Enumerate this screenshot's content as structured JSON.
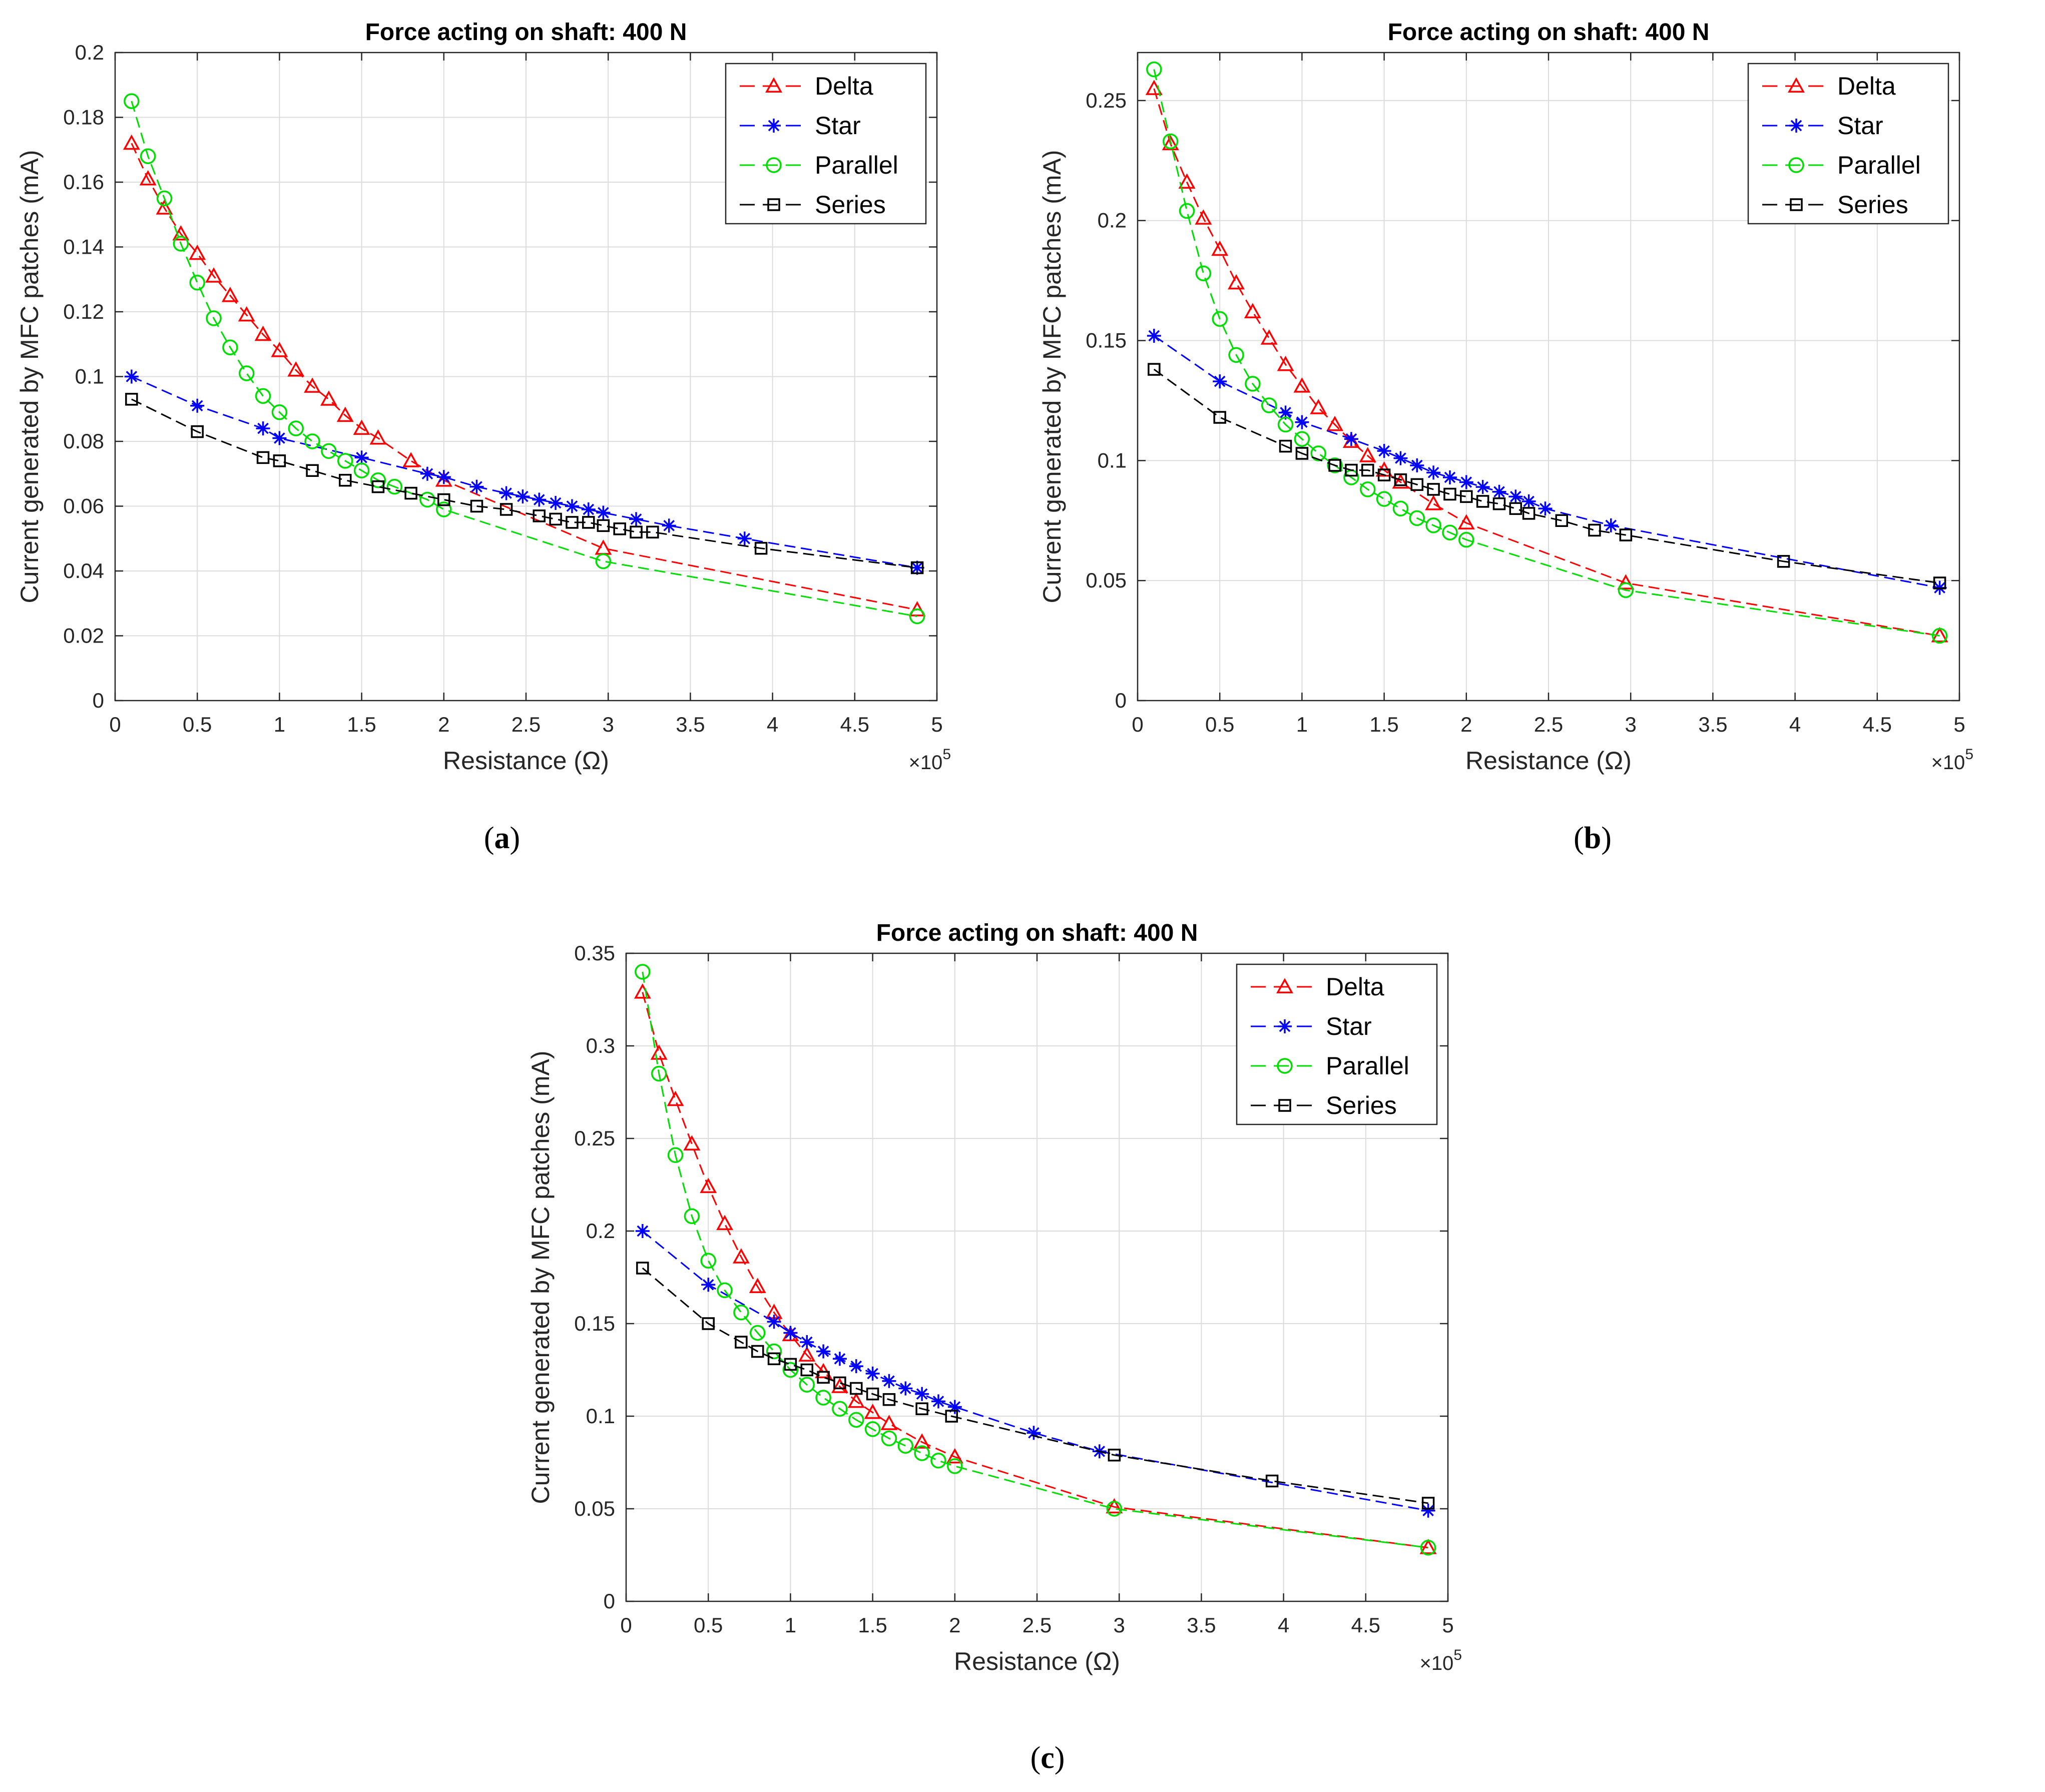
{
  "figure": {
    "panel_labels": [
      {
        "open": "(",
        "letter": "a",
        "close": ")"
      },
      {
        "open": "(",
        "letter": "b",
        "close": ")"
      },
      {
        "open": "(",
        "letter": "c",
        "close": ")"
      }
    ]
  },
  "legend_order": [
    "Delta",
    "Star",
    "Parallel",
    "Series"
  ],
  "series_style": {
    "Delta": {
      "color": "#ff0000",
      "marker": "triangle"
    },
    "Star": {
      "color": "#0000ff",
      "marker": "asterisk"
    },
    "Parallel": {
      "color": "#00dd00",
      "marker": "circle"
    },
    "Series": {
      "color": "#000000",
      "marker": "square"
    }
  },
  "chart_data": [
    {
      "type": "line",
      "title": "Force acting on shaft: 400 N",
      "xlabel": "Resistance (Ω)",
      "ylabel": "Current generated by MFC patches (mA)",
      "x_multiplier_text": {
        "base": "×10",
        "exp": "5"
      },
      "xlim": [
        0,
        5
      ],
      "ylim": [
        0,
        0.2
      ],
      "xticks": [
        0,
        0.5,
        1,
        1.5,
        2,
        2.5,
        3,
        3.5,
        4,
        4.5,
        5
      ],
      "xtick_labels": [
        "0",
        "0.5",
        "1",
        "1.5",
        "2",
        "2.5",
        "3",
        "3.5",
        "4",
        "4.5",
        "5"
      ],
      "yticks": [
        0,
        0.02,
        0.04,
        0.06,
        0.08,
        0.1,
        0.12,
        0.14,
        0.16,
        0.18,
        0.2
      ],
      "ytick_labels": [
        "0",
        "0.02",
        "0.04",
        "0.06",
        "0.08",
        "0.1",
        "0.12",
        "0.14",
        "0.16",
        "0.18",
        "0.2"
      ],
      "grid": true,
      "legend": "top-right",
      "series": [
        {
          "name": "Delta",
          "x": [
            0.1,
            0.2,
            0.3,
            0.4,
            0.5,
            0.6,
            0.7,
            0.8,
            0.9,
            1.0,
            1.1,
            1.2,
            1.3,
            1.4,
            1.5,
            1.6,
            1.8,
            2.0,
            2.97,
            4.88
          ],
          "y": [
            0.172,
            0.161,
            0.152,
            0.144,
            0.138,
            0.131,
            0.125,
            0.119,
            0.113,
            0.108,
            0.102,
            0.097,
            0.093,
            0.088,
            0.084,
            0.081,
            0.074,
            0.068,
            0.047,
            0.028
          ]
        },
        {
          "name": "Star",
          "x": [
            0.1,
            0.5,
            0.9,
            1.0,
            1.5,
            1.9,
            2.0,
            2.2,
            2.38,
            2.48,
            2.58,
            2.68,
            2.78,
            2.88,
            2.97,
            3.17,
            3.37,
            3.83,
            4.88
          ],
          "y": [
            0.1,
            0.091,
            0.084,
            0.081,
            0.075,
            0.07,
            0.069,
            0.066,
            0.064,
            0.063,
            0.062,
            0.061,
            0.06,
            0.059,
            0.058,
            0.056,
            0.054,
            0.05,
            0.041
          ]
        },
        {
          "name": "Parallel",
          "x": [
            0.1,
            0.2,
            0.3,
            0.4,
            0.5,
            0.6,
            0.7,
            0.8,
            0.9,
            1.0,
            1.1,
            1.2,
            1.3,
            1.4,
            1.5,
            1.6,
            1.7,
            1.9,
            2.0,
            2.97,
            4.88
          ],
          "y": [
            0.185,
            0.168,
            0.155,
            0.141,
            0.129,
            0.118,
            0.109,
            0.101,
            0.094,
            0.089,
            0.084,
            0.08,
            0.077,
            0.074,
            0.071,
            0.068,
            0.066,
            0.062,
            0.059,
            0.043,
            0.026
          ]
        },
        {
          "name": "Series",
          "x": [
            0.1,
            0.5,
            0.9,
            1.0,
            1.2,
            1.4,
            1.6,
            1.8,
            2.0,
            2.2,
            2.38,
            2.58,
            2.68,
            2.78,
            2.88,
            2.97,
            3.07,
            3.17,
            3.27,
            3.93,
            4.88
          ],
          "y": [
            0.093,
            0.083,
            0.075,
            0.074,
            0.071,
            0.068,
            0.066,
            0.064,
            0.062,
            0.06,
            0.059,
            0.057,
            0.056,
            0.055,
            0.055,
            0.054,
            0.053,
            0.052,
            0.052,
            0.047,
            0.041
          ]
        }
      ]
    },
    {
      "type": "line",
      "title": "Force acting on shaft: 400 N",
      "xlabel": "Resistance (Ω)",
      "ylabel": "Current generated by MFC patches (mA)",
      "x_multiplier_text": {
        "base": "×10",
        "exp": "5"
      },
      "xlim": [
        0,
        5
      ],
      "ylim": [
        0,
        0.27
      ],
      "xticks": [
        0,
        0.5,
        1,
        1.5,
        2,
        2.5,
        3,
        3.5,
        4,
        4.5,
        5
      ],
      "xtick_labels": [
        "0",
        "0.5",
        "1",
        "1.5",
        "2",
        "2.5",
        "3",
        "3.5",
        "4",
        "4.5",
        "5"
      ],
      "yticks": [
        0,
        0.05,
        0.1,
        0.15,
        0.2,
        0.25
      ],
      "ytick_labels": [
        "0",
        "0.05",
        "0.1",
        "0.15",
        "0.2",
        "0.25"
      ],
      "grid": true,
      "legend": "top-right",
      "series": [
        {
          "name": "Delta",
          "x": [
            0.1,
            0.2,
            0.3,
            0.4,
            0.5,
            0.6,
            0.7,
            0.8,
            0.9,
            1.0,
            1.1,
            1.2,
            1.3,
            1.4,
            1.5,
            1.6,
            1.8,
            2.0,
            2.97,
            4.88
          ],
          "y": [
            0.255,
            0.232,
            0.216,
            0.201,
            0.188,
            0.174,
            0.162,
            0.151,
            0.14,
            0.131,
            0.122,
            0.115,
            0.108,
            0.102,
            0.096,
            0.091,
            0.082,
            0.074,
            0.049,
            0.027
          ]
        },
        {
          "name": "Star",
          "x": [
            0.1,
            0.5,
            0.9,
            1.0,
            1.3,
            1.5,
            1.6,
            1.7,
            1.8,
            1.9,
            2.0,
            2.1,
            2.2,
            2.3,
            2.38,
            2.48,
            2.88,
            4.88
          ],
          "y": [
            0.152,
            0.133,
            0.12,
            0.116,
            0.109,
            0.104,
            0.101,
            0.098,
            0.095,
            0.093,
            0.091,
            0.089,
            0.087,
            0.085,
            0.083,
            0.08,
            0.073,
            0.047
          ]
        },
        {
          "name": "Parallel",
          "x": [
            0.1,
            0.2,
            0.3,
            0.4,
            0.5,
            0.6,
            0.7,
            0.8,
            0.9,
            1.0,
            1.1,
            1.2,
            1.3,
            1.4,
            1.5,
            1.6,
            1.7,
            1.8,
            1.9,
            2.0,
            2.97,
            4.88
          ],
          "y": [
            0.263,
            0.233,
            0.204,
            0.178,
            0.159,
            0.144,
            0.132,
            0.123,
            0.115,
            0.109,
            0.103,
            0.098,
            0.093,
            0.088,
            0.084,
            0.08,
            0.076,
            0.073,
            0.07,
            0.067,
            0.046,
            0.027
          ]
        },
        {
          "name": "Series",
          "x": [
            0.1,
            0.5,
            0.9,
            1.0,
            1.2,
            1.3,
            1.4,
            1.5,
            1.6,
            1.7,
            1.8,
            1.9,
            2.0,
            2.1,
            2.2,
            2.3,
            2.38,
            2.58,
            2.78,
            2.97,
            3.93,
            4.88
          ],
          "y": [
            0.138,
            0.118,
            0.106,
            0.103,
            0.098,
            0.096,
            0.096,
            0.094,
            0.092,
            0.09,
            0.088,
            0.086,
            0.085,
            0.083,
            0.082,
            0.08,
            0.078,
            0.075,
            0.071,
            0.069,
            0.058,
            0.049
          ]
        }
      ]
    },
    {
      "type": "line",
      "title": "Force acting on shaft: 400 N",
      "xlabel": "Resistance (Ω)",
      "ylabel": "Current generated by MFC patches (mA)",
      "x_multiplier_text": {
        "base": "×10",
        "exp": "5"
      },
      "xlim": [
        0,
        5
      ],
      "ylim": [
        0,
        0.35
      ],
      "xticks": [
        0,
        0.5,
        1,
        1.5,
        2,
        2.5,
        3,
        3.5,
        4,
        4.5,
        5
      ],
      "xtick_labels": [
        "0",
        "0.5",
        "1",
        "1.5",
        "2",
        "2.5",
        "3",
        "3.5",
        "4",
        "4.5",
        "5"
      ],
      "yticks": [
        0,
        0.05,
        0.1,
        0.15,
        0.2,
        0.25,
        0.3,
        0.35
      ],
      "ytick_labels": [
        "0",
        "0.05",
        "0.1",
        "0.15",
        "0.2",
        "0.25",
        "0.3",
        "0.35"
      ],
      "grid": true,
      "legend": "top-right",
      "series": [
        {
          "name": "Delta",
          "x": [
            0.1,
            0.2,
            0.3,
            0.4,
            0.5,
            0.6,
            0.7,
            0.8,
            0.9,
            1.0,
            1.1,
            1.2,
            1.3,
            1.4,
            1.5,
            1.6,
            1.8,
            2.0,
            2.97,
            4.88
          ],
          "y": [
            0.329,
            0.296,
            0.271,
            0.247,
            0.224,
            0.204,
            0.186,
            0.17,
            0.156,
            0.144,
            0.133,
            0.124,
            0.116,
            0.108,
            0.102,
            0.096,
            0.086,
            0.078,
            0.051,
            0.029
          ]
        },
        {
          "name": "Star",
          "x": [
            0.1,
            0.5,
            0.9,
            1.0,
            1.1,
            1.2,
            1.3,
            1.4,
            1.5,
            1.6,
            1.7,
            1.8,
            1.9,
            2.0,
            2.48,
            2.88,
            4.88
          ],
          "y": [
            0.2,
            0.171,
            0.151,
            0.145,
            0.14,
            0.135,
            0.131,
            0.127,
            0.123,
            0.119,
            0.115,
            0.112,
            0.108,
            0.105,
            0.091,
            0.081,
            0.049
          ]
        },
        {
          "name": "Parallel",
          "x": [
            0.1,
            0.2,
            0.3,
            0.4,
            0.5,
            0.6,
            0.7,
            0.8,
            0.9,
            1.0,
            1.1,
            1.2,
            1.3,
            1.4,
            1.5,
            1.6,
            1.7,
            1.8,
            1.9,
            2.0,
            2.97,
            4.88
          ],
          "y": [
            0.34,
            0.285,
            0.241,
            0.208,
            0.184,
            0.168,
            0.156,
            0.145,
            0.135,
            0.125,
            0.117,
            0.11,
            0.104,
            0.098,
            0.093,
            0.088,
            0.084,
            0.08,
            0.076,
            0.073,
            0.05,
            0.029
          ]
        },
        {
          "name": "Series",
          "x": [
            0.1,
            0.5,
            0.7,
            0.8,
            0.9,
            1.0,
            1.1,
            1.2,
            1.3,
            1.4,
            1.5,
            1.6,
            1.8,
            1.98,
            2.97,
            3.93,
            4.88
          ],
          "y": [
            0.18,
            0.15,
            0.14,
            0.135,
            0.131,
            0.128,
            0.125,
            0.121,
            0.118,
            0.115,
            0.112,
            0.109,
            0.104,
            0.1,
            0.079,
            0.065,
            0.053
          ]
        }
      ]
    }
  ]
}
